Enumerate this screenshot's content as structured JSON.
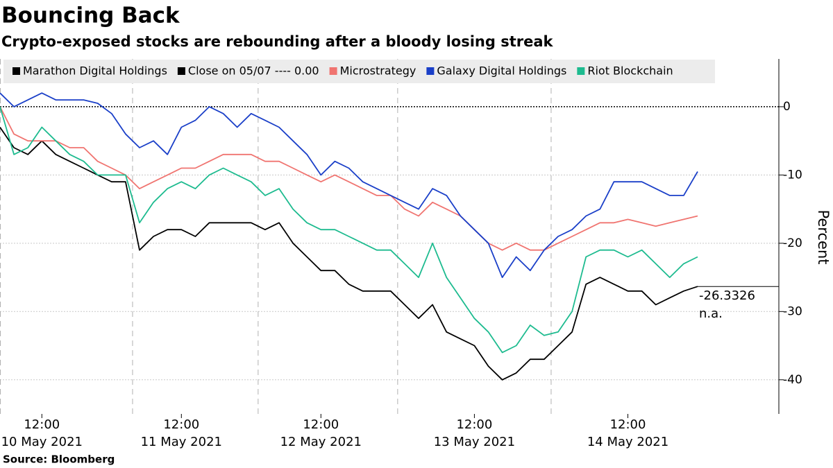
{
  "chart_data": {
    "type": "line",
    "title": "Bouncing Back",
    "subtitle": "Crypto-exposed stocks are rebounding after a bloody losing streak",
    "source": "Source: Bloomberg",
    "y_label": "Percent",
    "x": [
      "2021-05-10 09:00",
      "2021-05-10 10:00",
      "2021-05-10 11:00",
      "2021-05-10 12:00",
      "2021-05-10 13:00",
      "2021-05-10 14:00",
      "2021-05-10 15:00",
      "2021-05-10 16:00",
      "2021-05-10 17:00",
      "2021-05-10 18:00",
      "2021-05-11 09:00",
      "2021-05-11 10:00",
      "2021-05-11 11:00",
      "2021-05-11 12:00",
      "2021-05-11 13:00",
      "2021-05-11 14:00",
      "2021-05-11 15:00",
      "2021-05-11 16:00",
      "2021-05-11 17:00",
      "2021-05-12 08:00",
      "2021-05-12 09:00",
      "2021-05-12 10:00",
      "2021-05-12 11:00",
      "2021-05-12 12:00",
      "2021-05-12 13:00",
      "2021-05-12 14:00",
      "2021-05-12 15:00",
      "2021-05-12 16:00",
      "2021-05-12 17:00",
      "2021-05-13 07:00",
      "2021-05-13 08:00",
      "2021-05-13 09:00",
      "2021-05-13 10:00",
      "2021-05-13 11:00",
      "2021-05-13 12:00",
      "2021-05-13 13:00",
      "2021-05-13 14:00",
      "2021-05-13 15:00",
      "2021-05-13 16:00",
      "2021-05-13 17:00",
      "2021-05-14 07:00",
      "2021-05-14 08:00",
      "2021-05-14 09:00",
      "2021-05-14 10:00",
      "2021-05-14 11:00",
      "2021-05-14 12:00",
      "2021-05-14 13:00",
      "2021-05-14 14:00",
      "2021-05-14 15:00",
      "2021-05-14 16:00",
      "2021-05-14 17:00"
    ],
    "series": [
      {
        "name": "Marathon Digital Holdings",
        "color": "#000000",
        "values": [
          -3,
          -6,
          -7,
          -5,
          -7,
          -8,
          -9,
          -10,
          -11,
          -11,
          -21,
          -19,
          -18,
          -18,
          -19,
          -17,
          -17,
          -17,
          -17,
          -18,
          -17,
          -20,
          -22,
          -24,
          -24,
          -26,
          -27,
          -27,
          -27,
          -29,
          -31,
          -29,
          -33,
          -34,
          -35,
          -38,
          -40,
          -39,
          -37,
          -37,
          -35,
          -33,
          -26,
          -25,
          -26,
          -27,
          -27,
          -29,
          -28,
          -27,
          -26.3326
        ]
      },
      {
        "name": "Microstrategy",
        "color": "#f07470",
        "values": [
          0,
          -4,
          -5,
          -5,
          -5,
          -6,
          -6,
          -8,
          -9,
          -10,
          -12,
          -11,
          -10,
          -9,
          -9,
          -8,
          -7,
          -7,
          -7,
          -8,
          -8,
          -9,
          -10,
          -11,
          -10,
          -11,
          -12,
          -13,
          -13,
          -15,
          -16,
          -14,
          -15,
          -16,
          -18,
          -20,
          -21,
          -20,
          -21,
          -21,
          -20,
          -19,
          -18,
          -17,
          -17,
          -16.5,
          -17,
          -17.5,
          -17,
          -16.5,
          -16
        ]
      },
      {
        "name": "Galaxy Digital Holdings",
        "color": "#1a3fc8",
        "values": [
          2,
          0,
          1,
          2,
          1,
          1,
          1,
          0.5,
          -1,
          -4,
          -6,
          -5,
          -7,
          -3,
          -2,
          0,
          -1,
          -3,
          -1,
          -2,
          -3,
          -5,
          -7,
          -10,
          -8,
          -9,
          -11,
          -12,
          -13,
          -14,
          -15,
          -12,
          -13,
          -16,
          -18,
          -20,
          -25,
          -22,
          -24,
          -21,
          -19,
          -18,
          -16,
          -15,
          -11,
          -11,
          -11,
          -12,
          -13,
          -13,
          -9.5
        ]
      },
      {
        "name": "Riot Blockchain",
        "color": "#1dbb8f",
        "values": [
          0,
          -7,
          -6,
          -3,
          -5,
          -7,
          -8,
          -10,
          -10,
          -10,
          -17,
          -14,
          -12,
          -11,
          -12,
          -10,
          -9,
          -10,
          -11,
          -13,
          -12,
          -15,
          -17,
          -18,
          -18,
          -19,
          -20,
          -21,
          -21,
          -23,
          -25,
          -20,
          -25,
          -28,
          -31,
          -33,
          -36,
          -35,
          -32,
          -33.5,
          -33,
          -30,
          -22,
          -21,
          -21,
          -22,
          -21,
          -23,
          -25,
          -23,
          -22
        ]
      }
    ],
    "reference_line": {
      "label": "Close on 05/07 ---- 0.00",
      "value": 0,
      "color": "#000000"
    },
    "annotations": [
      "-26.3326",
      "n.a."
    ],
    "xticks": [
      {
        "value": "2021-05-10 12:00",
        "label": [
          "12:00",
          "10 May 2021"
        ]
      },
      {
        "value": "2021-05-11 12:00",
        "label": [
          "12:00",
          "11 May 2021"
        ]
      },
      {
        "value": "2021-05-12 12:00",
        "label": [
          "12:00",
          "12 May 2021"
        ]
      },
      {
        "value": "2021-05-13 12:00",
        "label": [
          "12:00",
          "13 May 2021"
        ]
      },
      {
        "value": "2021-05-14 12:00",
        "label": [
          "12:00",
          "14 May 2021"
        ]
      }
    ],
    "ylim": [
      -45,
      7
    ],
    "yticks": [
      0,
      -10,
      -20,
      -30,
      -40
    ],
    "grid": true
  }
}
